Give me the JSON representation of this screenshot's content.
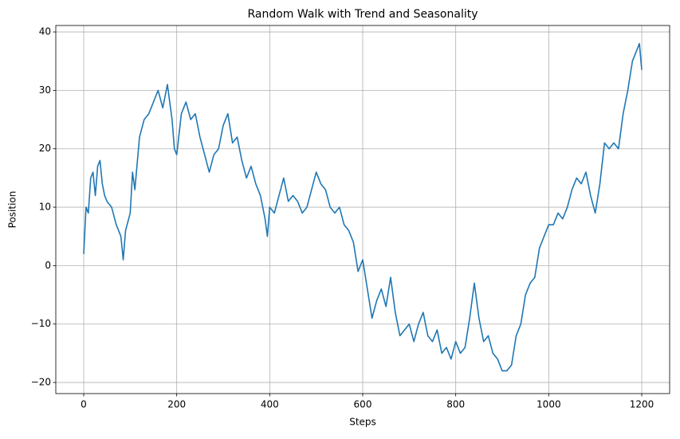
{
  "chart_data": {
    "type": "line",
    "title": "Random Walk with Trend and Seasonality",
    "x_label": "Steps",
    "y_label": "Position",
    "x": [
      0,
      5,
      10,
      15,
      20,
      25,
      30,
      35,
      40,
      45,
      50,
      60,
      70,
      80,
      85,
      90,
      100,
      105,
      110,
      120,
      130,
      140,
      150,
      160,
      170,
      180,
      190,
      195,
      200,
      210,
      220,
      230,
      240,
      250,
      260,
      270,
      280,
      290,
      300,
      310,
      320,
      330,
      340,
      350,
      360,
      370,
      380,
      390,
      395,
      400,
      410,
      420,
      430,
      440,
      450,
      460,
      470,
      480,
      490,
      500,
      510,
      520,
      530,
      540,
      550,
      560,
      570,
      580,
      590,
      600,
      610,
      620,
      630,
      640,
      650,
      660,
      670,
      680,
      690,
      700,
      710,
      720,
      730,
      740,
      750,
      760,
      770,
      780,
      790,
      800,
      810,
      820,
      830,
      840,
      850,
      860,
      870,
      880,
      890,
      900,
      910,
      920,
      930,
      940,
      950,
      960,
      970,
      980,
      990,
      1000,
      1010,
      1020,
      1030,
      1040,
      1050,
      1060,
      1070,
      1080,
      1090,
      1100,
      1110,
      1120,
      1130,
      1140,
      1150,
      1160,
      1170,
      1180,
      1190,
      1195,
      1200
    ],
    "values": [
      2,
      10,
      9,
      15,
      16,
      12,
      17,
      18,
      14,
      12,
      11,
      10,
      7,
      5,
      1,
      6,
      9,
      16,
      13,
      22,
      25,
      26,
      28,
      30,
      27,
      31,
      25,
      20,
      19,
      26,
      28,
      25,
      26,
      22,
      19,
      16,
      19,
      20,
      24,
      26,
      21,
      22,
      18,
      15,
      17,
      14,
      12,
      8,
      5,
      10,
      9,
      12,
      15,
      11,
      12,
      11,
      9,
      10,
      13,
      16,
      14,
      13,
      10,
      9,
      10,
      7,
      6,
      4,
      -1,
      1,
      -4,
      -9,
      -6,
      -4,
      -7,
      -2,
      -8,
      -12,
      -11,
      -10,
      -13,
      -10,
      -8,
      -12,
      -13,
      -11,
      -15,
      -14,
      -16,
      -13,
      -15,
      -14,
      -9,
      -3,
      -9,
      -13,
      -12,
      -15,
      -16,
      -18,
      -18,
      -17,
      -12,
      -10,
      -5,
      -3,
      -2,
      3,
      5,
      7,
      7,
      9,
      8,
      10,
      13,
      15,
      14,
      16,
      12,
      9,
      14,
      21,
      20,
      21,
      20,
      26,
      30,
      35,
      37,
      38,
      33.5
    ],
    "color": "#1f77b4",
    "xlim": [
      -60,
      1260
    ],
    "ylim": [
      -21.9,
      41.1
    ],
    "xticks": [
      0,
      200,
      400,
      600,
      800,
      1000,
      1200
    ],
    "yticks": [
      {
        "value": -20,
        "label": "−20"
      },
      {
        "value": -10,
        "label": "−10"
      },
      0,
      10,
      20,
      30,
      40
    ],
    "grid": true
  }
}
